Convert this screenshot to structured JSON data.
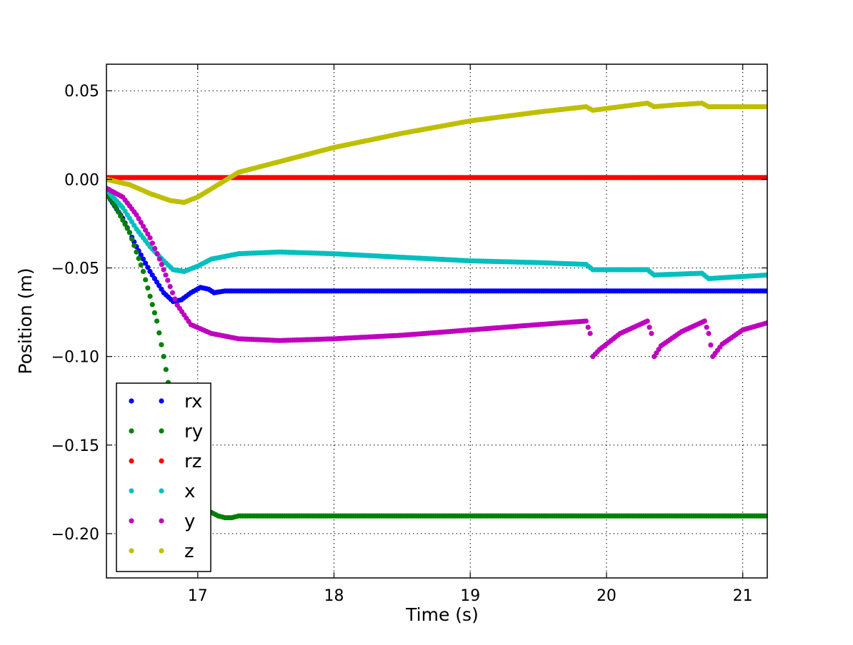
{
  "chart_data": {
    "type": "scatter",
    "title": "",
    "xlabel": "Time (s)",
    "ylabel": "Position (m)",
    "xlim": [
      16.33,
      21.18
    ],
    "ylim": [
      -0.225,
      0.065
    ],
    "x_ticks": [
      17,
      18,
      19,
      20,
      21
    ],
    "x_tick_labels": [
      "17",
      "18",
      "19",
      "20",
      "21"
    ],
    "y_ticks": [
      0.05,
      0.0,
      -0.05,
      -0.1,
      -0.15,
      -0.2
    ],
    "y_tick_labels": [
      "0.05",
      "0.00",
      "−0.05",
      "−0.10",
      "−0.15",
      "−0.20"
    ],
    "grid": true,
    "legend_position": "lower-left",
    "series": [
      {
        "name": "rx",
        "color": "#0000ff",
        "x": [
          16.33,
          16.45,
          16.55,
          16.65,
          16.75,
          16.82,
          16.88,
          16.95,
          17.02,
          17.08,
          17.12,
          17.2,
          18.0,
          19.0,
          20.0,
          21.18
        ],
        "y": [
          -0.008,
          -0.022,
          -0.038,
          -0.052,
          -0.064,
          -0.069,
          -0.068,
          -0.064,
          -0.061,
          -0.062,
          -0.064,
          -0.063,
          -0.063,
          -0.063,
          -0.063,
          -0.063
        ]
      },
      {
        "name": "ry",
        "color": "#008000",
        "x": [
          16.33,
          16.4,
          16.5,
          16.6,
          16.7,
          16.75,
          16.8,
          16.85,
          16.9,
          16.95,
          17.0,
          17.05,
          17.1,
          17.15,
          17.2,
          17.25,
          17.3,
          17.4,
          18.0,
          19.0,
          20.0,
          21.18
        ],
        "y": [
          -0.008,
          -0.016,
          -0.03,
          -0.052,
          -0.08,
          -0.1,
          -0.122,
          -0.144,
          -0.162,
          -0.174,
          -0.182,
          -0.186,
          -0.188,
          -0.19,
          -0.191,
          -0.191,
          -0.19,
          -0.19,
          -0.19,
          -0.19,
          -0.19,
          -0.19
        ]
      },
      {
        "name": "rz",
        "color": "#ff0000",
        "x": [
          16.33,
          17.0,
          18.0,
          19.0,
          20.0,
          21.18
        ],
        "y": [
          0.001,
          0.001,
          0.001,
          0.001,
          0.001,
          0.001
        ]
      },
      {
        "name": "x",
        "color": "#00bfbf",
        "x": [
          16.33,
          16.45,
          16.55,
          16.65,
          16.75,
          16.82,
          16.9,
          17.0,
          17.1,
          17.3,
          17.6,
          18.0,
          18.5,
          19.0,
          19.5,
          19.85,
          19.9,
          20.3,
          20.35,
          20.7,
          20.75,
          21.18
        ],
        "y": [
          -0.006,
          -0.016,
          -0.028,
          -0.038,
          -0.046,
          -0.051,
          -0.052,
          -0.049,
          -0.045,
          -0.042,
          -0.041,
          -0.042,
          -0.044,
          -0.046,
          -0.047,
          -0.048,
          -0.051,
          -0.051,
          -0.054,
          -0.053,
          -0.056,
          -0.054
        ]
      },
      {
        "name": "y",
        "color": "#bf00bf",
        "x": [
          16.33,
          16.45,
          16.55,
          16.65,
          16.72,
          16.78,
          16.85,
          16.95,
          17.1,
          17.3,
          17.6,
          18.0,
          18.5,
          19.0,
          19.5,
          19.85,
          19.88,
          19.9,
          19.95,
          20.1,
          20.3,
          20.33,
          20.35,
          20.4,
          20.55,
          20.72,
          20.75,
          20.78,
          20.85,
          21.0,
          21.18
        ],
        "y": [
          -0.005,
          -0.01,
          -0.02,
          -0.033,
          -0.045,
          -0.057,
          -0.071,
          -0.082,
          -0.087,
          -0.09,
          -0.091,
          -0.09,
          -0.088,
          -0.085,
          -0.082,
          -0.08,
          -0.087,
          -0.1,
          -0.096,
          -0.087,
          -0.08,
          -0.087,
          -0.1,
          -0.094,
          -0.086,
          -0.08,
          -0.087,
          -0.1,
          -0.093,
          -0.085,
          -0.081
        ]
      },
      {
        "name": "z",
        "color": "#bfbf00",
        "x": [
          16.33,
          16.5,
          16.65,
          16.8,
          16.9,
          17.0,
          17.15,
          17.3,
          17.6,
          18.0,
          18.5,
          19.0,
          19.5,
          19.85,
          19.9,
          20.0,
          20.2,
          20.3,
          20.35,
          20.5,
          20.7,
          20.75,
          21.0,
          21.18
        ],
        "y": [
          0.0,
          -0.003,
          -0.008,
          -0.012,
          -0.013,
          -0.01,
          -0.003,
          0.004,
          0.01,
          0.018,
          0.026,
          0.033,
          0.038,
          0.041,
          0.039,
          0.04,
          0.042,
          0.043,
          0.041,
          0.042,
          0.043,
          0.041,
          0.041,
          0.041
        ]
      }
    ]
  }
}
